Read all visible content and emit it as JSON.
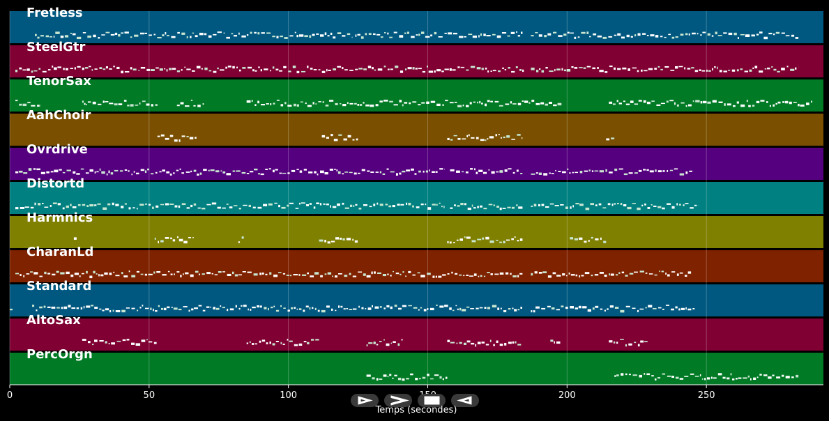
{
  "x_axis": {
    "label": "Temps (secondes)",
    "min": 0,
    "max": 292,
    "ticks": [
      0,
      50,
      100,
      150,
      200,
      250
    ]
  },
  "tracks": [
    {
      "name": "Fretless",
      "color": "#005880",
      "segments": [
        [
          9,
          123
        ],
        [
          124,
          184
        ],
        [
          187,
          283
        ]
      ]
    },
    {
      "name": "SteelGtr",
      "color": "#800033",
      "segments": [
        [
          2,
          185
        ],
        [
          187,
          283
        ]
      ]
    },
    {
      "name": "TenorSax",
      "color": "#007a25",
      "segments": [
        [
          2,
          11
        ],
        [
          26,
          53
        ],
        [
          60,
          70
        ],
        [
          85,
          198
        ],
        [
          215,
          288
        ]
      ]
    },
    {
      "name": "AahChoir",
      "color": "#7a5000",
      "segments": [
        [
          53,
          67
        ],
        [
          112,
          125
        ],
        [
          157,
          184
        ],
        [
          214,
          217
        ]
      ]
    },
    {
      "name": "Ovrdrive",
      "color": "#55007f",
      "segments": [
        [
          2,
          156
        ],
        [
          158,
          184
        ],
        [
          187,
          245
        ]
      ]
    },
    {
      "name": "Distortd",
      "color": "#008080",
      "segments": [
        [
          2,
          156
        ],
        [
          158,
          184
        ],
        [
          187,
          247
        ]
      ]
    },
    {
      "name": "Harmnics",
      "color": "#7f7f00",
      "segments": [
        [
          23,
          24
        ],
        [
          52,
          66
        ],
        [
          82,
          84
        ],
        [
          111,
          125
        ],
        [
          157,
          184
        ],
        [
          201,
          214
        ]
      ]
    },
    {
      "name": "CharanLd",
      "color": "#7f2200",
      "segments": [
        [
          2,
          184
        ],
        [
          187,
          245
        ]
      ]
    },
    {
      "name": "Standard",
      "color": "#005880",
      "segments": [
        [
          0,
          1
        ],
        [
          8,
          184
        ],
        [
          187,
          246
        ]
      ]
    },
    {
      "name": "AltoSax",
      "color": "#800033",
      "segments": [
        [
          26,
          53
        ],
        [
          85,
          111
        ],
        [
          128,
          141
        ],
        [
          157,
          184
        ],
        [
          194,
          198
        ],
        [
          215,
          229
        ]
      ]
    },
    {
      "name": "PercOrgn",
      "color": "#007a25",
      "segments": [
        [
          128,
          157
        ],
        [
          217,
          283
        ]
      ]
    }
  ],
  "controls": [
    {
      "id": "play",
      "icon": "play-icon"
    },
    {
      "id": "forward",
      "icon": "forward-icon"
    },
    {
      "id": "stop",
      "icon": "stop-icon"
    },
    {
      "id": "back",
      "icon": "back-icon"
    }
  ]
}
